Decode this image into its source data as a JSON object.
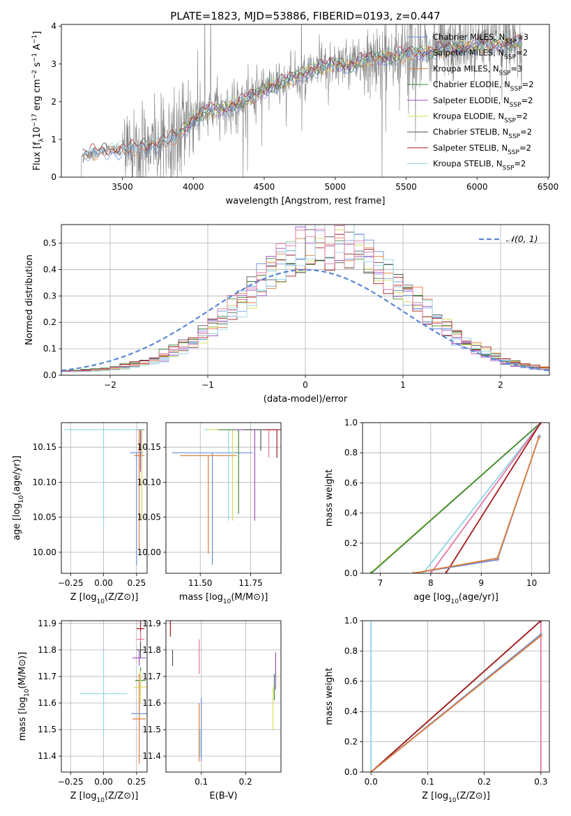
{
  "figure_title": "PLATE=1823, MJD=53886, FIBERID=0193, z=0.447",
  "colors": {
    "Chabrier MILES": "#6a8ed6",
    "Salpeter MILES": "#7aa0e0",
    "Kroupa MILES": "#e07b39",
    "Chabrier ELODIE": "#3a8a3a",
    "Salpeter ELODIE": "#9b4dc0",
    "Kroupa ELODIE": "#d7dd55",
    "Chabrier STELIB": "#555555",
    "Salpeter STELIB": "#a31b1b",
    "Kroupa STELIB": "#8fd6e6",
    "data": "#808080",
    "pink": "#e377a6",
    "normal": "#5b87d4"
  },
  "chart_data": [
    {
      "id": "spectrum",
      "type": "line",
      "title": "PLATE=1823, MJD=53886, FIBERID=0193, z=0.447",
      "xlabel": "wavelength [Angstrom, rest frame]",
      "ylabel": "Flux [f_λ 10^-17 erg cm^-2 s^-1 A^-1]",
      "xlim": [
        3070,
        6510
      ],
      "ylim": [
        0,
        4.05
      ],
      "xticks": [
        3500,
        4000,
        4500,
        5000,
        5500,
        6000,
        6500
      ],
      "yticks": [
        0,
        1,
        2,
        3,
        4
      ],
      "grid": false,
      "legend_position": "top-right",
      "legend": [
        "Chabrier MILES, N_SSP=3",
        "Salpeter MILES, N_SSP=2",
        "Kroupa MILES, N_SSP=3",
        "Chabrier ELODIE, N_SSP=2",
        "Salpeter ELODIE, N_SSP=2",
        "Kroupa ELODIE, N_SSP=2",
        "Chabrier STELIB, N_SSP=2",
        "Salpeter STELIB, N_SSP=2",
        "Kroupa STELIB, N_SSP=2"
      ],
      "continuum": {
        "x": [
          3210,
          3250,
          3300,
          3400,
          3500,
          3600,
          3700,
          3800,
          3900,
          4000,
          4100,
          4200,
          4300,
          4400,
          4500,
          4600,
          4700,
          4800,
          4900,
          5000,
          5100,
          5200,
          5300,
          5400,
          5500,
          5600,
          5700,
          5800,
          5900,
          6000,
          6100,
          6200,
          6320
        ],
        "y": [
          0.55,
          0.62,
          0.66,
          0.7,
          0.72,
          0.78,
          0.85,
          0.95,
          1.1,
          1.55,
          1.75,
          1.8,
          1.95,
          2.1,
          2.3,
          2.5,
          2.6,
          2.8,
          2.9,
          3.0,
          2.95,
          3.1,
          3.15,
          3.2,
          3.25,
          3.3,
          3.35,
          3.4,
          3.45,
          3.48,
          3.52,
          3.55,
          3.55
        ]
      }
    },
    {
      "id": "residuals",
      "type": "step",
      "xlabel": "(data-model)/error",
      "ylabel": "Normed distribution",
      "xlim": [
        -2.5,
        2.5
      ],
      "ylim": [
        0,
        0.57
      ],
      "xticks": [
        -2,
        -1,
        0,
        1,
        2
      ],
      "yticks": [
        0.0,
        0.1,
        0.2,
        0.3,
        0.4,
        0.5
      ],
      "grid": true,
      "legend_position": "top-right",
      "legend": [
        "𝒩(0, 1)"
      ],
      "bin_width": 0.1
    },
    {
      "id": "age_vs_Z",
      "type": "scatter",
      "xlabel": "Z [log10(Z/Z⊙)]",
      "ylabel": "age  [log10(age/yr)]",
      "xlim": [
        -0.32,
        0.33
      ],
      "ylim": [
        9.97,
        10.185
      ],
      "xticks": [
        -0.25,
        0.0,
        0.25
      ],
      "yticks": [
        10.0,
        10.05,
        10.1,
        10.15
      ],
      "grid": true,
      "points": [
        {
          "x": 0.28,
          "y": 10.175,
          "xerr": 0.03,
          "yerr": [
            0.02,
            0.0
          ],
          "color": "Salpeter STELIB"
        },
        {
          "x": 0.29,
          "y": 10.175,
          "xerr": 0.02,
          "yerr": [
            0.04,
            0.0
          ],
          "color": "Chabrier STELIB"
        },
        {
          "x": 0.25,
          "y": 10.142,
          "xerr": 0.05,
          "yerr": [
            0.16,
            0.0
          ],
          "color": "Chabrier MILES"
        },
        {
          "x": 0.27,
          "y": 10.138,
          "xerr": 0.04,
          "yerr": [
            0.04,
            0.0
          ],
          "color": "Kroupa MILES"
        },
        {
          "x": 0.29,
          "y": 10.175,
          "xerr": 0.02,
          "yerr": [
            0.13,
            0.0
          ],
          "color": "Kroupa ELODIE"
        },
        {
          "x": 0.28,
          "y": 10.175,
          "xerr": 0.02,
          "yerr": [
            0.06,
            0.0
          ],
          "color": "Salpeter ELODIE"
        },
        {
          "x": 0.27,
          "y": 10.175,
          "xerr": 0.02,
          "yerr": [
            0.17,
            0.0
          ],
          "color": "Kroupa MILES"
        },
        {
          "x": 0.0,
          "y": 10.175,
          "xerr": 0.3,
          "yerr": [
            0.14,
            0.0
          ],
          "color": "Kroupa STELIB"
        }
      ]
    },
    {
      "id": "age_vs_mass",
      "type": "scatter",
      "xlabel": "mass [log10(M/M⊙)]",
      "ylabel": "",
      "xlim": [
        11.33,
        11.9
      ],
      "ylim": [
        9.97,
        10.185
      ],
      "xticks": [
        11.5,
        11.75
      ],
      "yticks": [
        10.0,
        10.05,
        10.1,
        10.15
      ],
      "grid": true,
      "points": [
        {
          "x": 11.56,
          "y": 10.142,
          "xerr": 0.2,
          "yerr": [
            0.16,
            0.0
          ],
          "color": "Chabrier MILES"
        },
        {
          "x": 11.54,
          "y": 10.138,
          "xerr": 0.14,
          "yerr": [
            0.14,
            0.0
          ],
          "color": "Kroupa MILES"
        },
        {
          "x": 11.64,
          "y": 10.175,
          "xerr": 0.12,
          "yerr": [
            0.13,
            0.0
          ],
          "color": "Kroupa STELIB"
        },
        {
          "x": 11.66,
          "y": 10.175,
          "xerr": 0.12,
          "yerr": [
            0.13,
            0.0
          ],
          "color": "Kroupa ELODIE"
        },
        {
          "x": 11.69,
          "y": 10.175,
          "xerr": 0.1,
          "yerr": [
            0.12,
            0.0
          ],
          "color": "Chabrier ELODIE"
        },
        {
          "x": 11.77,
          "y": 10.175,
          "xerr": 0.1,
          "yerr": [
            0.13,
            0.0
          ],
          "color": "Salpeter ELODIE"
        },
        {
          "x": 11.84,
          "y": 10.175,
          "xerr": 0.08,
          "yerr": [
            0.04,
            0.0
          ],
          "color": "pink"
        },
        {
          "x": 11.8,
          "y": 10.175,
          "xerr": 0.08,
          "yerr": [
            0.03,
            0.0
          ],
          "color": "Chabrier STELIB"
        },
        {
          "x": 11.88,
          "y": 10.175,
          "xerr": 0.06,
          "yerr": [
            0.04,
            0.0
          ],
          "color": "Salpeter STELIB"
        }
      ]
    },
    {
      "id": "mass_weight_vs_age",
      "type": "line",
      "xlabel": "age  [log10(age/yr)]",
      "ylabel": "mass weight",
      "xlim": [
        6.65,
        10.35
      ],
      "ylim": [
        0,
        1.0
      ],
      "xticks": [
        7,
        8,
        9,
        10
      ],
      "yticks": [
        0.0,
        0.2,
        0.4,
        0.6,
        0.8,
        1.0
      ],
      "grid": true,
      "series": [
        {
          "color": "Kroupa ELODIE",
          "x": [
            6.8,
            10.18
          ],
          "y": [
            0.0,
            1.0
          ]
        },
        {
          "color": "Chabrier ELODIE",
          "x": [
            6.82,
            10.18
          ],
          "y": [
            0.0,
            1.0
          ]
        },
        {
          "color": "Kroupa STELIB",
          "x": [
            7.85,
            10.18
          ],
          "y": [
            0.0,
            1.0
          ]
        },
        {
          "color": "pink",
          "x": [
            8.0,
            10.18
          ],
          "y": [
            0.0,
            1.0
          ]
        },
        {
          "color": "Salpeter STELIB",
          "x": [
            8.3,
            10.18
          ],
          "y": [
            0.0,
            1.0
          ]
        },
        {
          "color": "Chabrier MILES",
          "x": [
            7.65,
            9.32,
            10.15
          ],
          "y": [
            0.0,
            0.09,
            0.91
          ]
        },
        {
          "color": "Kroupa MILES",
          "x": [
            7.65,
            9.32,
            10.14
          ],
          "y": [
            0.0,
            0.1,
            0.9
          ]
        }
      ]
    },
    {
      "id": "mass_vs_Z",
      "type": "scatter",
      "xlabel": "Z [log10(Z/Z⊙)]",
      "ylabel": "mass [log10(M/M⊙)]",
      "xlim": [
        -0.32,
        0.33
      ],
      "ylim": [
        11.34,
        11.91
      ],
      "xticks": [
        -0.25,
        0.0,
        0.25
      ],
      "yticks": [
        11.4,
        11.5,
        11.6,
        11.7,
        11.8,
        11.9
      ],
      "grid": true,
      "points": [
        {
          "x": 0.28,
          "y": 11.88,
          "xerr": 0.03,
          "yerr": 0.04,
          "color": "Salpeter STELIB"
        },
        {
          "x": 0.28,
          "y": 11.84,
          "xerr": 0.03,
          "yerr": 0.03,
          "color": "pink"
        },
        {
          "x": 0.28,
          "y": 11.8,
          "xerr": 0.03,
          "yerr": 0.03,
          "color": "Chabrier STELIB"
        },
        {
          "x": 0.27,
          "y": 11.77,
          "xerr": 0.05,
          "yerr": 0.03,
          "color": "Salpeter ELODIE"
        },
        {
          "x": 0.28,
          "y": 11.685,
          "xerr": 0.04,
          "yerr": 0.05,
          "color": "Chabrier ELODIE"
        },
        {
          "x": 0.28,
          "y": 11.66,
          "xerr": 0.05,
          "yerr": 0.06,
          "color": "Kroupa ELODIE"
        },
        {
          "x": 0.27,
          "y": 11.56,
          "xerr": 0.06,
          "yerr": 0.05,
          "color": "Chabrier MILES"
        },
        {
          "x": 0.27,
          "y": 11.54,
          "xerr": 0.05,
          "yerr": 0.17,
          "color": "Kroupa MILES"
        },
        {
          "x": 0.0,
          "y": 11.635,
          "xerr": 0.18,
          "yerr": 0.16,
          "color": "Kroupa STELIB"
        }
      ]
    },
    {
      "id": "mass_vs_EBV",
      "type": "scatter",
      "xlabel": "E(B-V)",
      "ylabel": "",
      "xlim": [
        0.02,
        0.28
      ],
      "ylim": [
        11.34,
        11.91
      ],
      "xticks": [
        0.1,
        0.2
      ],
      "yticks": [
        11.4,
        11.5,
        11.6,
        11.7,
        11.8,
        11.9
      ],
      "grid": true,
      "points": [
        {
          "x": 0.03,
          "y": 11.88,
          "yerr": 0.03,
          "color": "Salpeter STELIB"
        },
        {
          "x": 0.035,
          "y": 11.77,
          "yerr": 0.03,
          "color": "Chabrier STELIB"
        },
        {
          "x": 0.095,
          "y": 11.775,
          "yerr": 0.065,
          "color": "pink"
        },
        {
          "x": 0.095,
          "y": 11.49,
          "yerr": 0.11,
          "color": "Kroupa MILES"
        },
        {
          "x": 0.1,
          "y": 11.5,
          "yerr": 0.12,
          "color": "Chabrier MILES"
        },
        {
          "x": 0.097,
          "y": 11.45,
          "yerr": 0.05,
          "color": "Kroupa STELIB"
        },
        {
          "x": 0.268,
          "y": 11.72,
          "yerr": 0.07,
          "color": "Salpeter ELODIE"
        },
        {
          "x": 0.265,
          "y": 11.66,
          "yerr": 0.05,
          "color": "Chabrier ELODIE"
        },
        {
          "x": 0.262,
          "y": 11.58,
          "yerr": 0.08,
          "color": "Kroupa ELODIE"
        }
      ]
    },
    {
      "id": "mass_weight_vs_Z",
      "type": "line",
      "xlabel": "Z [log10(Z/Z⊙)]",
      "ylabel": "mass weight",
      "xlim": [
        -0.015,
        0.315
      ],
      "ylim": [
        0,
        1.0
      ],
      "xticks": [
        0.0,
        0.1,
        0.2,
        0.3
      ],
      "yticks": [
        0.0,
        0.2,
        0.4,
        0.6,
        0.8,
        1.0
      ],
      "grid": true,
      "series": [
        {
          "color": "Kroupa STELIB",
          "x": [
            0.0,
            0.0
          ],
          "y": [
            0.0,
            1.0
          ]
        },
        {
          "color": "pink",
          "x": [
            0.3,
            0.3
          ],
          "y": [
            0.0,
            1.0
          ]
        },
        {
          "color": "Chabrier STELIB",
          "x": [
            0.0,
            0.3
          ],
          "y": [
            0.0,
            1.0
          ]
        },
        {
          "color": "Salpeter STELIB",
          "x": [
            0.0,
            0.3
          ],
          "y": [
            0.0,
            1.0
          ]
        },
        {
          "color": "Chabrier MILES",
          "x": [
            0.0,
            0.3
          ],
          "y": [
            0.0,
            0.91
          ]
        },
        {
          "color": "Kroupa MILES",
          "x": [
            0.0,
            0.3
          ],
          "y": [
            0.0,
            0.9
          ]
        }
      ]
    }
  ]
}
